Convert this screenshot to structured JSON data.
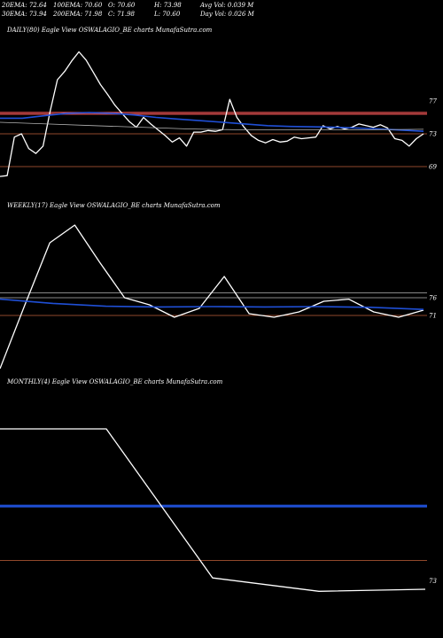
{
  "header": {
    "ema20": "20EMA: 72.64",
    "ema100": "100EMA: 70.60",
    "open": "O: 70.60",
    "high": "H: 73.98",
    "avg_vol": "Avg Vol: 0.039 M",
    "ema30": "30EMA: 73.94",
    "ema200": "200EMA: 71.98",
    "close": "C: 71.98",
    "low": "L: 70.60",
    "day_vol": "Day Vol: 0.026  M"
  },
  "panels": [
    {
      "label": "DAILY(80) Eagle   View  OSWALAGIO_BE charts MunafaSutra.com"
    },
    {
      "label": "WEEKLY(17) Eagle   View  OSWALAGIO_BE charts MunafaSutra.com"
    },
    {
      "label": "MONTHLY(4) Eagle   View  OSWALAGIO_BE charts MunafaSutra.com"
    }
  ],
  "colors": {
    "background": "#000000",
    "price": "#ffffff",
    "ema": "#1f4fd6",
    "red_line": "#ff5a5a",
    "ref_line": "#c0603a",
    "grey_line": "#b4b4b4"
  },
  "chart_data": [
    {
      "type": "line",
      "panel": "daily",
      "ylim": [
        65,
        85
      ],
      "y_tick_labels": [
        "77",
        "73",
        "69"
      ],
      "y_ticks": [
        77,
        73,
        69
      ],
      "series": [
        {
          "role": "price",
          "values": [
            67.8,
            67.9,
            72.6,
            73.0,
            71.2,
            70.6,
            71.5,
            75.8,
            79.6,
            80.6,
            81.9,
            83.0,
            82.0,
            80.5,
            79.0,
            77.8,
            76.5,
            75.5,
            74.5,
            73.8,
            75.0,
            74.2,
            73.5,
            72.8,
            72.0,
            72.5,
            71.5,
            73.2,
            73.2,
            73.4,
            73.3,
            73.5,
            77.2,
            75.0,
            73.8,
            72.8,
            72.2,
            71.9,
            72.3,
            72.0,
            72.1,
            72.6,
            72.4,
            72.5,
            72.6,
            74.0,
            73.6,
            73.9,
            73.6,
            73.8,
            74.2,
            74.0,
            73.8,
            74.1,
            73.7,
            72.4,
            72.2,
            71.5,
            72.4,
            73.0
          ]
        },
        {
          "role": "ema",
          "values": [
            74.9,
            74.9,
            75.2,
            75.5,
            75.6,
            75.5,
            75.3,
            75.0,
            74.8,
            74.6,
            74.4,
            74.2,
            74.0,
            73.9,
            73.85,
            73.8,
            73.7,
            73.6,
            73.45,
            73.3
          ]
        },
        {
          "role": "grey",
          "values": [
            74.4,
            74.2,
            74.0,
            73.8,
            73.6,
            73.5,
            73.5,
            73.5,
            73.5,
            73.55
          ]
        }
      ],
      "reference_lines": [
        {
          "role": "red",
          "value": 75.6
        },
        {
          "role": "red",
          "value": 75.4
        },
        {
          "role": "ref",
          "value": 73.0
        },
        {
          "role": "ref",
          "value": 69.0
        }
      ]
    },
    {
      "type": "line",
      "panel": "weekly",
      "ylim": [
        55,
        100
      ],
      "y_tick_labels": [
        "76",
        "71"
      ],
      "y_ticks": [
        76,
        71
      ],
      "series": [
        {
          "role": "price",
          "values": [
            56.0,
            74.0,
            91.5,
            96.5,
            86.0,
            76.0,
            74.0,
            70.5,
            73.0,
            82.0,
            71.5,
            70.5,
            72.0,
            75.0,
            75.6,
            72.0,
            70.5,
            72.5
          ]
        },
        {
          "role": "ema",
          "values": [
            75.6,
            74.4,
            73.6,
            73.4,
            73.5,
            73.4,
            73.5,
            73.3,
            72.7
          ]
        }
      ],
      "reference_lines": [
        {
          "role": "grey",
          "value": 77.4
        },
        {
          "role": "grey",
          "value": 76.0
        },
        {
          "role": "ref",
          "value": 71.0
        }
      ]
    },
    {
      "type": "line",
      "panel": "monthly",
      "ylim": [
        60,
        120
      ],
      "y_tick_labels": [
        "73"
      ],
      "y_ticks": [
        73
      ],
      "series": [
        {
          "role": "price",
          "values": [
            110.4,
            110.4,
            73.7,
            70.4,
            70.9
          ]
        }
      ],
      "reference_lines": [
        {
          "role": "ema",
          "value": 91.4
        },
        {
          "role": "ref",
          "value": 78.0
        }
      ]
    }
  ]
}
